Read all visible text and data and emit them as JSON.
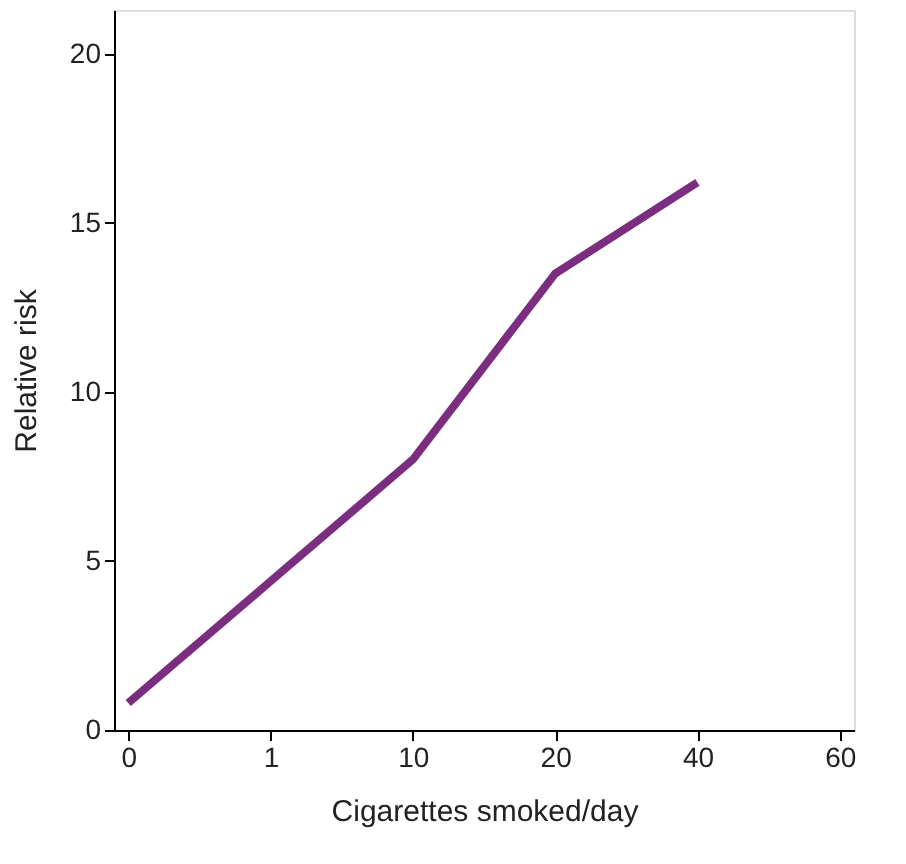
{
  "chart_data": {
    "type": "line",
    "xlabel": "Cigarettes smoked/day",
    "ylabel": "Relative risk",
    "categories": [
      "0",
      "1",
      "10",
      "20",
      "40",
      "60"
    ],
    "series": [
      {
        "color": "#7b2d80",
        "values": [
          0.8,
          4.4,
          8.0,
          13.5,
          16.2,
          null
        ]
      }
    ],
    "ylim": [
      0,
      21.3
    ],
    "yticks": [
      0,
      5,
      10,
      15,
      20
    ],
    "grid": false,
    "legend": false,
    "marker": "none",
    "line_style": "solid"
  }
}
